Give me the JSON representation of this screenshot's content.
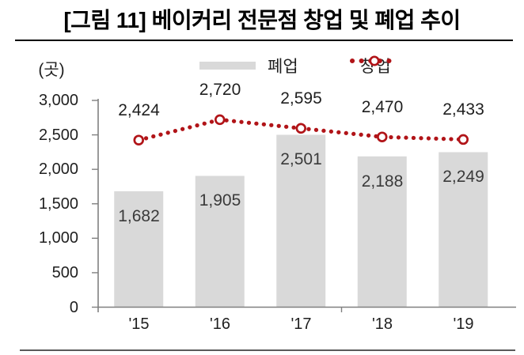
{
  "title": "[그림 11] 베이커리 전문점 창업 및 폐업 추이",
  "unit_label": "(곳)",
  "legend": [
    {
      "label": "폐업",
      "series": "bar",
      "swatch": "gray-bar",
      "color": "#d9d9d9"
    },
    {
      "label": "창업",
      "series": "line",
      "swatch": "red-dotted-line-open-circle",
      "color": "#b11418"
    }
  ],
  "chart_data": {
    "type": "bar",
    "subtype": "bar-line-combo",
    "title": "[그림 11] 베이커리 전문점 창업 및 폐업 추이",
    "categories": [
      "'15",
      "'16",
      "'17",
      "'18",
      "'19"
    ],
    "series": [
      {
        "name": "폐업",
        "type": "bar",
        "color": "#d9d9d9",
        "values": [
          1682,
          1905,
          2501,
          2188,
          2249
        ],
        "value_labels": [
          "1,682",
          "1,905",
          "2,501",
          "2,188",
          "2,249"
        ]
      },
      {
        "name": "창업",
        "type": "dotted-line",
        "marker": "open-circle",
        "color": "#b11418",
        "values": [
          2424,
          2720,
          2595,
          2470,
          2433
        ],
        "value_labels": [
          "2,424",
          "2,720",
          "2,595",
          "2,470",
          "2,433"
        ]
      }
    ],
    "xlabel": "",
    "ylabel": "(곳)",
    "ylim": [
      0,
      3000
    ],
    "yticks": [
      0,
      500,
      1000,
      1500,
      2000,
      2500,
      3000
    ],
    "ytick_labels": [
      "0",
      "500",
      "1,000",
      "1,500",
      "2,000",
      "2,500",
      "3,000"
    ],
    "grid": false,
    "legend_position": "top"
  },
  "colors": {
    "accent_red": "#b11418",
    "bar_gray": "#d9d9d9",
    "axis_gray": "#808080",
    "text_dark": "#1f1f1f"
  }
}
